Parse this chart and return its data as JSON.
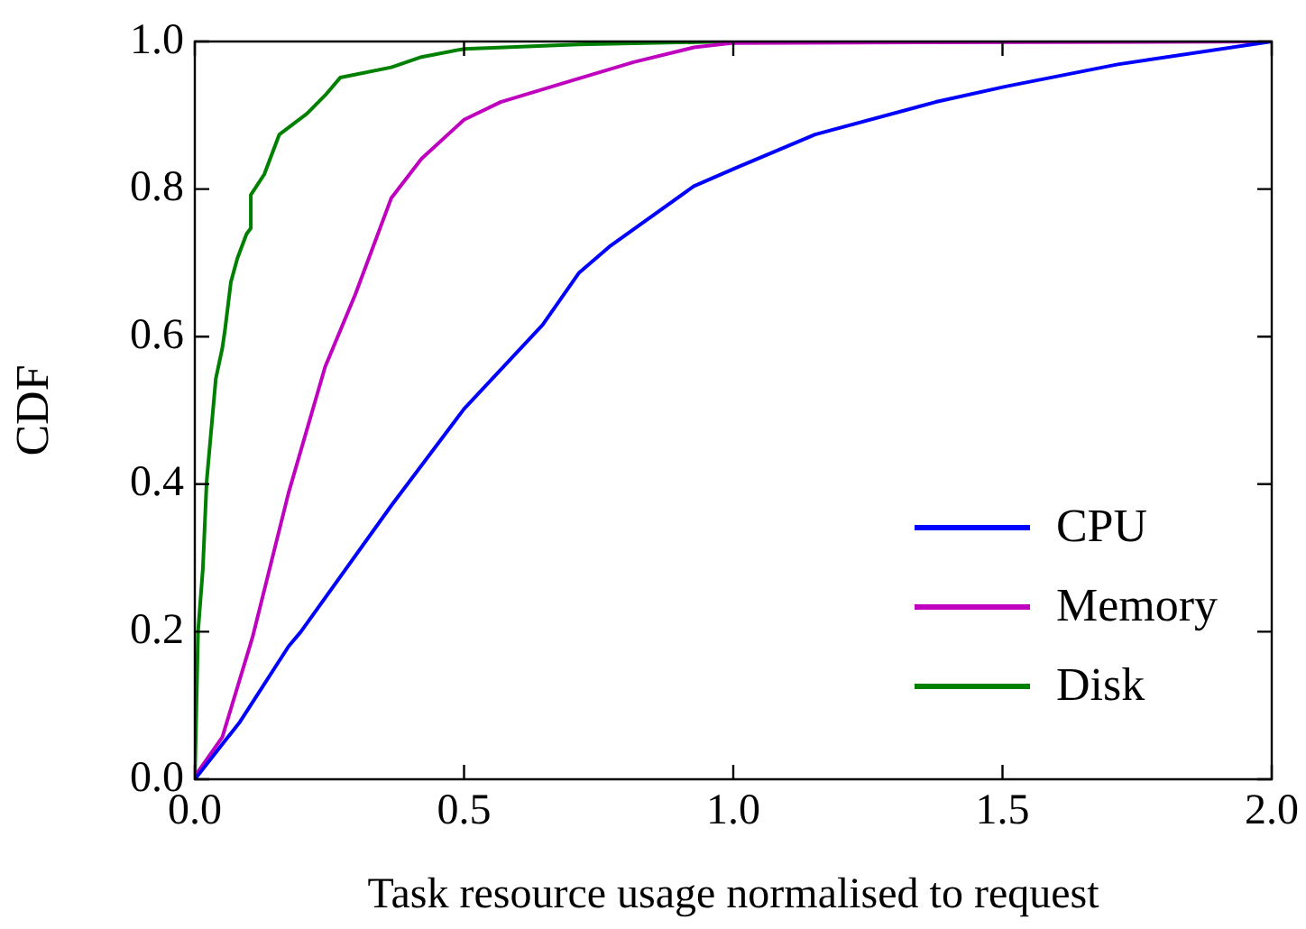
{
  "chart_data": {
    "type": "line",
    "xlabel": "Task resource usage normalised to request",
    "ylabel": "CDF",
    "xlim": [
      0,
      2
    ],
    "ylim": [
      0,
      1
    ],
    "xticks": [
      {
        "value": 0,
        "label": "0.0"
      },
      {
        "value": 0.5,
        "label": "0.5"
      },
      {
        "value": 1,
        "label": "1.0"
      },
      {
        "value": 1.5,
        "label": "1.5"
      },
      {
        "value": 2,
        "label": "2.0"
      }
    ],
    "yticks": [
      {
        "value": 0,
        "label": "0.0"
      },
      {
        "value": 0.2,
        "label": "0.2"
      },
      {
        "value": 0.4,
        "label": "0.4"
      },
      {
        "value": 0.6,
        "label": "0.6"
      },
      {
        "value": 0.8,
        "label": "0.8"
      },
      {
        "value": 1,
        "label": "1.0"
      }
    ],
    "grid": false,
    "legend": "bottom right",
    "marker": "none",
    "line_style": "solid",
    "series": [
      {
        "name": "CPU",
        "color": "#0000ff",
        "x": [
          0,
          0.084,
          0.174,
          0.197,
          0.365,
          0.5,
          0.646,
          0.713,
          0.77,
          0.927,
          1.006,
          1.152,
          1.376,
          1.506,
          1.714,
          2.0
        ],
        "values": [
          0,
          0.078,
          0.18,
          0.2,
          0.371,
          0.502,
          0.616,
          0.686,
          0.722,
          0.804,
          0.829,
          0.874,
          0.918,
          0.939,
          0.969,
          1.0
        ]
      },
      {
        "name": "Memory",
        "color": "#bf00bf",
        "x": [
          0,
          0.051,
          0.107,
          0.174,
          0.242,
          0.298,
          0.365,
          0.421,
          0.5,
          0.568,
          0.7,
          0.815,
          0.927,
          1.0,
          2.0
        ],
        "values": [
          0.004,
          0.057,
          0.192,
          0.388,
          0.559,
          0.657,
          0.788,
          0.841,
          0.894,
          0.918,
          0.947,
          0.972,
          0.992,
          0.998,
          1.0
        ]
      },
      {
        "name": "Disk",
        "color": "#008000",
        "x": [
          0,
          0.006,
          0.015,
          0.022,
          0.028,
          0.039,
          0.051,
          0.056,
          0.067,
          0.079,
          0.096,
          0.104,
          0.104,
          0.129,
          0.157,
          0.208,
          0.242,
          0.27,
          0.365,
          0.421,
          0.5,
          0.713,
          0.99
        ],
        "values": [
          0,
          0.2,
          0.286,
          0.404,
          0.453,
          0.543,
          0.584,
          0.609,
          0.674,
          0.706,
          0.739,
          0.747,
          0.792,
          0.82,
          0.874,
          0.902,
          0.927,
          0.951,
          0.965,
          0.979,
          0.99,
          0.996,
          1.0
        ]
      }
    ]
  }
}
